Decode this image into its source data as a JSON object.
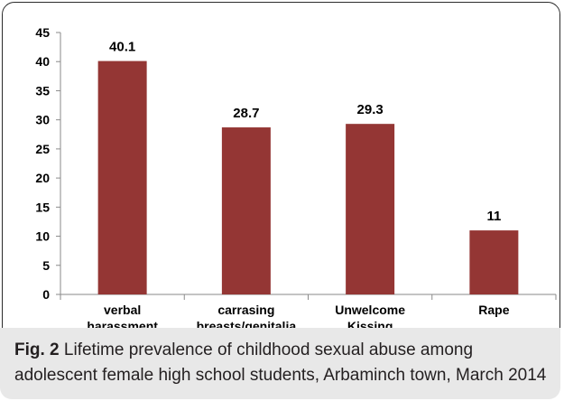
{
  "chart_data": {
    "type": "bar",
    "categories": [
      [
        "verbal",
        "harassment"
      ],
      [
        "carrasing",
        "breasts/genitalia"
      ],
      [
        "Unwelcome",
        "Kissing"
      ],
      [
        "Rape"
      ]
    ],
    "values": [
      40.1,
      28.7,
      29.3,
      11
    ],
    "value_labels": [
      "40.1",
      "28.7",
      "29.3",
      "11"
    ],
    "y_ticks": [
      "0",
      "5",
      "10",
      "15",
      "20",
      "25",
      "30",
      "35",
      "40",
      "45"
    ],
    "ylim": [
      0,
      45
    ],
    "bar_color": "#943634",
    "grid": false,
    "legend": "none"
  },
  "caption": {
    "label": "Fig. 2",
    "text": " Lifetime prevalence of childhood sexual abuse among adolescent female high school students, Arbaminch town, March 2014"
  }
}
